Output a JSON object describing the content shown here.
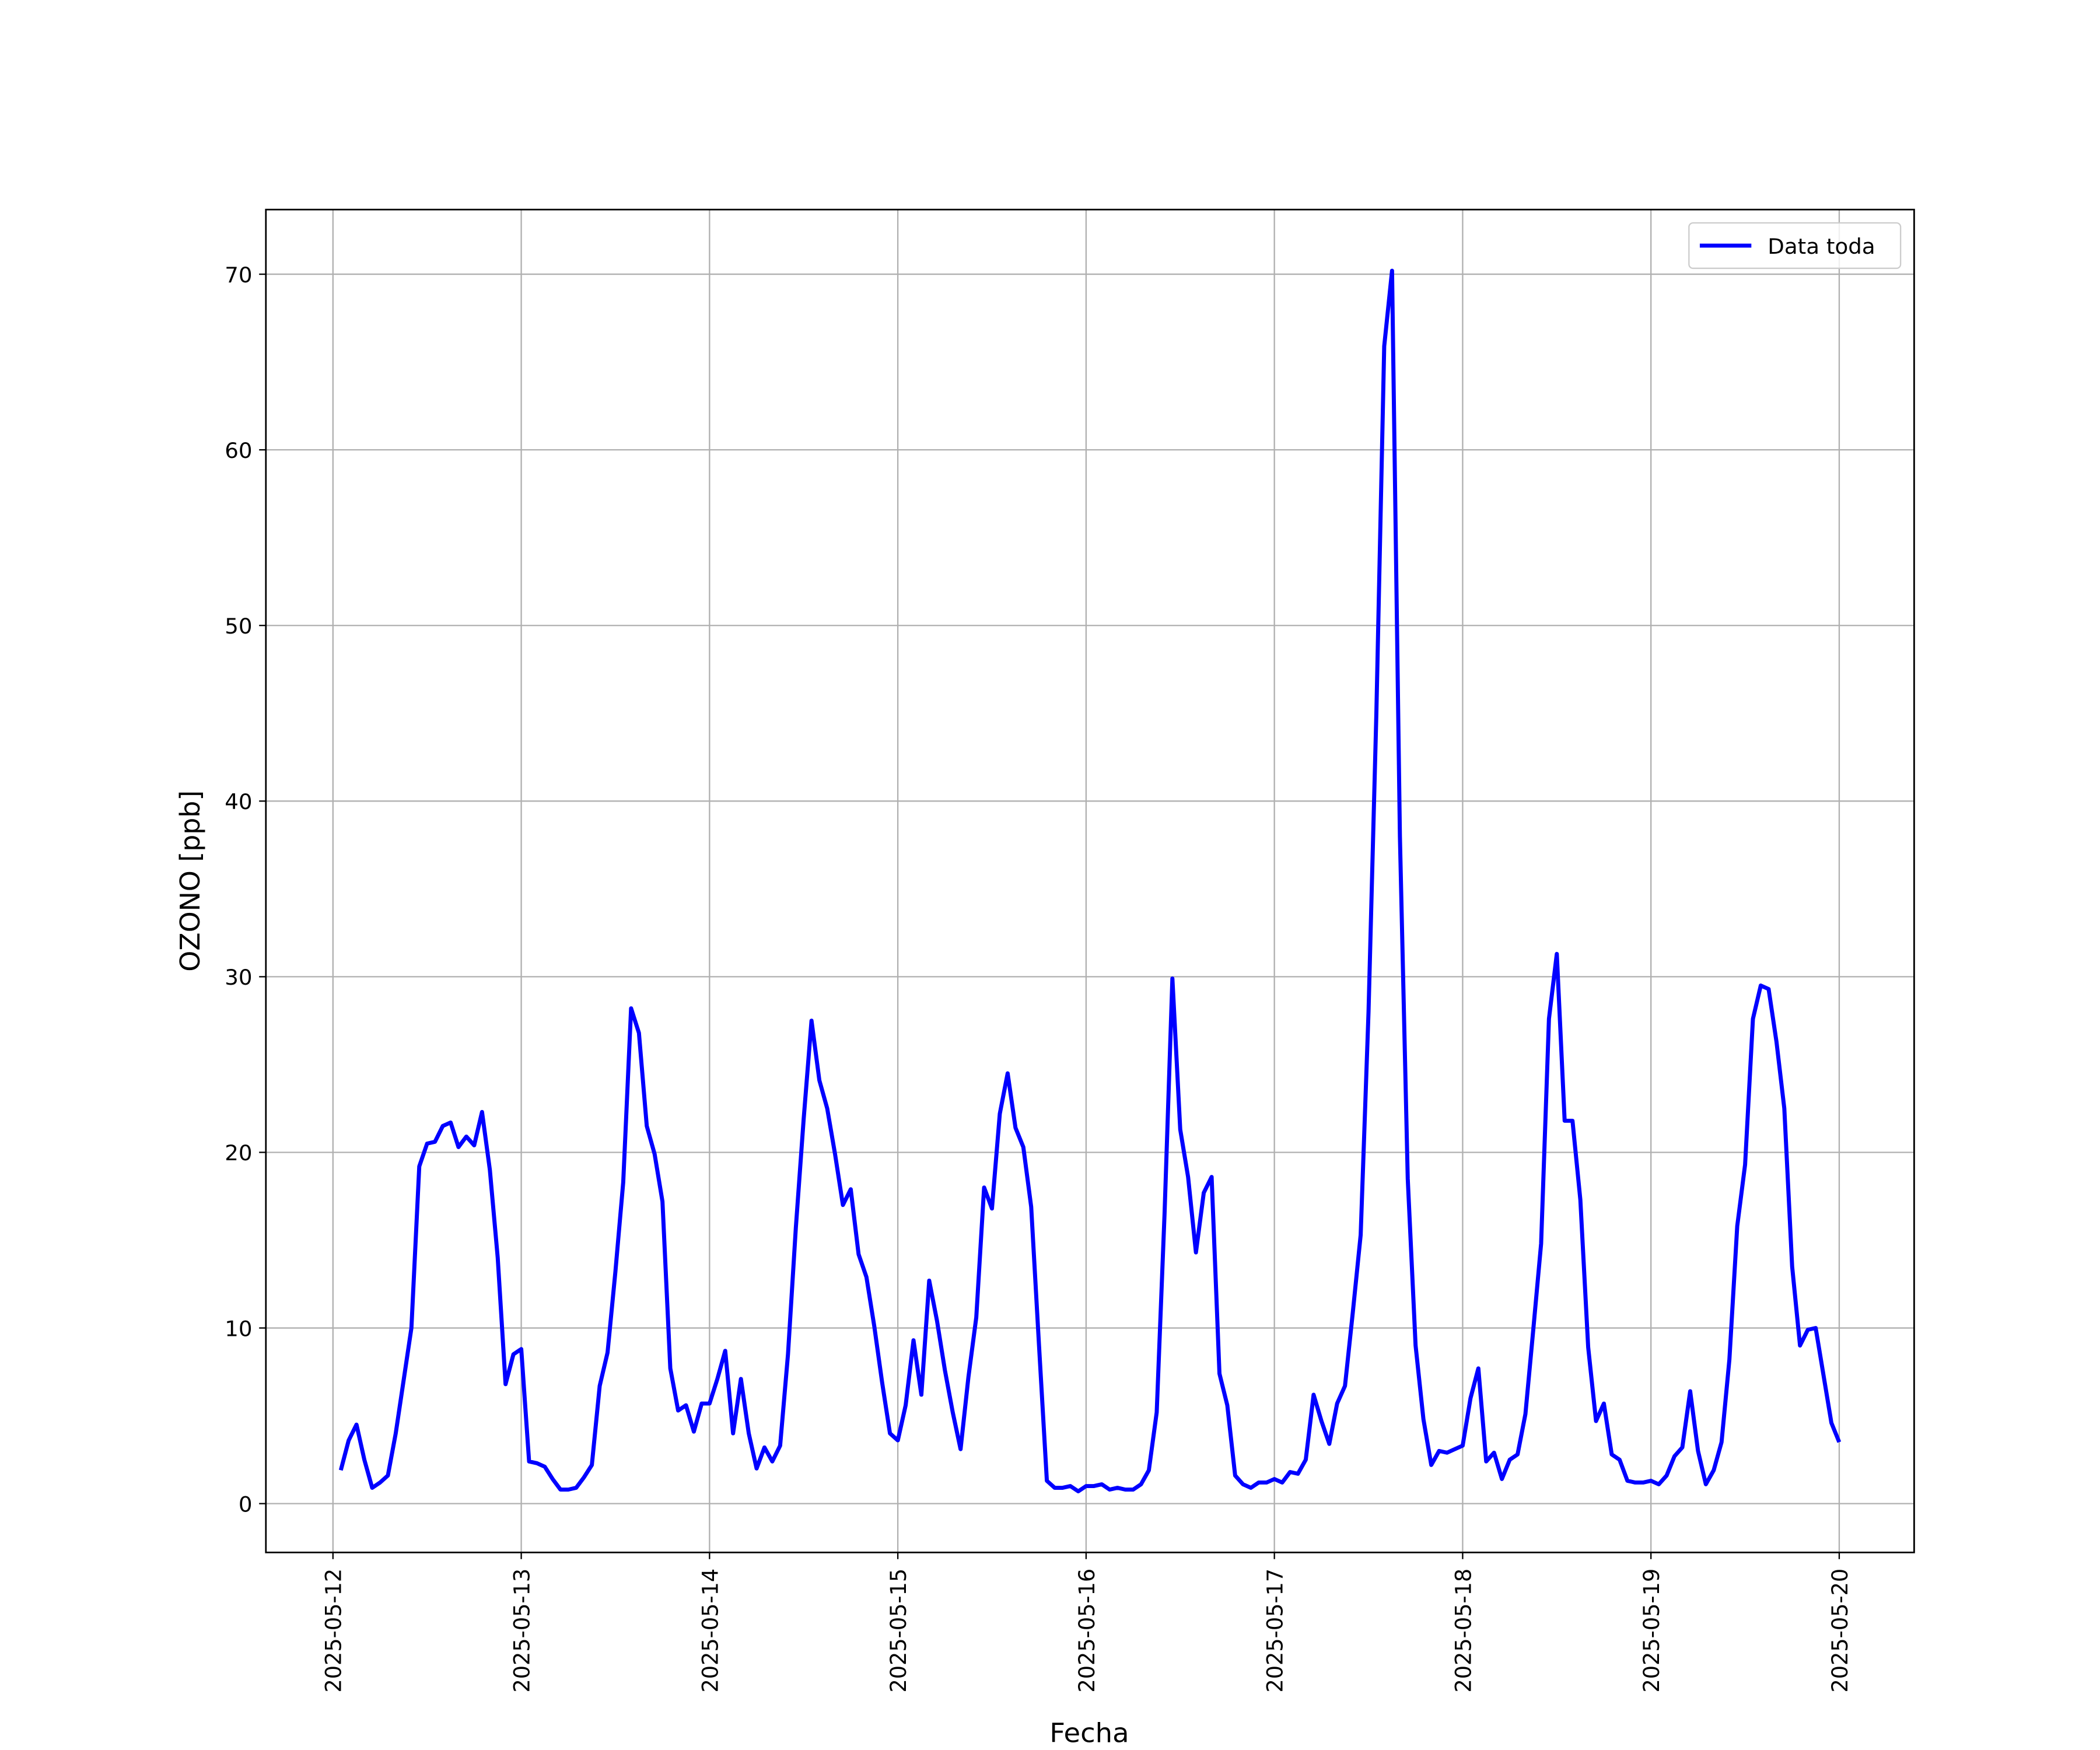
{
  "chart_data": {
    "type": "line",
    "xlabel": "Fecha",
    "ylabel": "OZONO [ppb]",
    "x": [
      "2025-05-12 01:00",
      "2025-05-12 02:00",
      "2025-05-12 03:00",
      "2025-05-12 04:00",
      "2025-05-12 05:00",
      "2025-05-12 06:00",
      "2025-05-12 07:00",
      "2025-05-12 08:00",
      "2025-05-12 09:00",
      "2025-05-12 10:00",
      "2025-05-12 11:00",
      "2025-05-12 12:00",
      "2025-05-12 13:00",
      "2025-05-12 14:00",
      "2025-05-12 15:00",
      "2025-05-12 16:00",
      "2025-05-12 17:00",
      "2025-05-12 18:00",
      "2025-05-12 19:00",
      "2025-05-12 20:00",
      "2025-05-12 21:00",
      "2025-05-12 22:00",
      "2025-05-12 23:00",
      "2025-05-13 00:00",
      "2025-05-13 01:00",
      "2025-05-13 02:00",
      "2025-05-13 03:00",
      "2025-05-13 04:00",
      "2025-05-13 05:00",
      "2025-05-13 06:00",
      "2025-05-13 07:00",
      "2025-05-13 08:00",
      "2025-05-13 09:00",
      "2025-05-13 10:00",
      "2025-05-13 11:00",
      "2025-05-13 12:00",
      "2025-05-13 13:00",
      "2025-05-13 14:00",
      "2025-05-13 15:00",
      "2025-05-13 16:00",
      "2025-05-13 17:00",
      "2025-05-13 18:00",
      "2025-05-13 19:00",
      "2025-05-13 20:00",
      "2025-05-13 21:00",
      "2025-05-13 22:00",
      "2025-05-13 23:00",
      "2025-05-14 00:00",
      "2025-05-14 01:00",
      "2025-05-14 02:00",
      "2025-05-14 03:00",
      "2025-05-14 04:00",
      "2025-05-14 05:00",
      "2025-05-14 06:00",
      "2025-05-14 07:00",
      "2025-05-14 08:00",
      "2025-05-14 09:00",
      "2025-05-14 10:00",
      "2025-05-14 11:00",
      "2025-05-14 12:00",
      "2025-05-14 13:00",
      "2025-05-14 14:00",
      "2025-05-14 15:00",
      "2025-05-14 16:00",
      "2025-05-14 17:00",
      "2025-05-14 18:00",
      "2025-05-14 19:00",
      "2025-05-14 20:00",
      "2025-05-14 21:00",
      "2025-05-14 22:00",
      "2025-05-14 23:00",
      "2025-05-15 00:00",
      "2025-05-15 01:00",
      "2025-05-15 02:00",
      "2025-05-15 03:00",
      "2025-05-15 04:00",
      "2025-05-15 05:00",
      "2025-05-15 06:00",
      "2025-05-15 07:00",
      "2025-05-15 08:00",
      "2025-05-15 09:00",
      "2025-05-15 10:00",
      "2025-05-15 11:00",
      "2025-05-15 12:00",
      "2025-05-15 13:00",
      "2025-05-15 14:00",
      "2025-05-15 15:00",
      "2025-05-15 16:00",
      "2025-05-15 17:00",
      "2025-05-15 18:00",
      "2025-05-15 19:00",
      "2025-05-15 20:00",
      "2025-05-15 21:00",
      "2025-05-15 22:00",
      "2025-05-15 23:00",
      "2025-05-16 00:00",
      "2025-05-16 01:00",
      "2025-05-16 02:00",
      "2025-05-16 03:00",
      "2025-05-16 04:00",
      "2025-05-16 05:00",
      "2025-05-16 06:00",
      "2025-05-16 07:00",
      "2025-05-16 08:00",
      "2025-05-16 09:00",
      "2025-05-16 10:00",
      "2025-05-16 11:00",
      "2025-05-16 12:00",
      "2025-05-16 13:00",
      "2025-05-16 14:00",
      "2025-05-16 15:00",
      "2025-05-16 16:00",
      "2025-05-16 17:00",
      "2025-05-16 18:00",
      "2025-05-16 19:00",
      "2025-05-16 20:00",
      "2025-05-16 21:00",
      "2025-05-16 22:00",
      "2025-05-16 23:00",
      "2025-05-17 00:00",
      "2025-05-17 01:00",
      "2025-05-17 02:00",
      "2025-05-17 03:00",
      "2025-05-17 04:00",
      "2025-05-17 05:00",
      "2025-05-17 06:00",
      "2025-05-17 07:00",
      "2025-05-17 08:00",
      "2025-05-17 09:00",
      "2025-05-17 10:00",
      "2025-05-17 11:00",
      "2025-05-17 12:00",
      "2025-05-17 13:00",
      "2025-05-17 14:00",
      "2025-05-17 15:00",
      "2025-05-17 16:00",
      "2025-05-17 17:00",
      "2025-05-17 18:00",
      "2025-05-17 19:00",
      "2025-05-17 20:00",
      "2025-05-17 21:00",
      "2025-05-17 22:00",
      "2025-05-17 23:00",
      "2025-05-18 00:00",
      "2025-05-18 01:00",
      "2025-05-18 02:00",
      "2025-05-18 03:00",
      "2025-05-18 04:00",
      "2025-05-18 05:00",
      "2025-05-18 06:00",
      "2025-05-18 07:00",
      "2025-05-18 08:00",
      "2025-05-18 09:00",
      "2025-05-18 10:00",
      "2025-05-18 11:00",
      "2025-05-18 12:00",
      "2025-05-18 13:00",
      "2025-05-18 14:00",
      "2025-05-18 15:00",
      "2025-05-18 16:00",
      "2025-05-18 17:00",
      "2025-05-18 18:00",
      "2025-05-18 19:00",
      "2025-05-18 20:00",
      "2025-05-18 21:00",
      "2025-05-18 22:00",
      "2025-05-18 23:00",
      "2025-05-19 00:00",
      "2025-05-19 01:00",
      "2025-05-19 02:00",
      "2025-05-19 03:00",
      "2025-05-19 04:00",
      "2025-05-19 05:00",
      "2025-05-19 06:00",
      "2025-05-19 07:00",
      "2025-05-19 08:00",
      "2025-05-19 09:00",
      "2025-05-19 10:00",
      "2025-05-19 11:00",
      "2025-05-19 12:00",
      "2025-05-19 13:00",
      "2025-05-19 14:00",
      "2025-05-19 15:00",
      "2025-05-19 16:00",
      "2025-05-19 17:00",
      "2025-05-19 18:00",
      "2025-05-19 19:00",
      "2025-05-19 20:00",
      "2025-05-19 21:00",
      "2025-05-19 22:00",
      "2025-05-19 23:00",
      "2025-05-20 00:00"
    ],
    "series": [
      {
        "name": "Data toda",
        "color": "#0000ff",
        "values": [
          1.9,
          3.6,
          4.5,
          2.5,
          0.9,
          1.2,
          1.6,
          4.0,
          7.0,
          10.0,
          19.2,
          20.5,
          20.6,
          21.5,
          21.7,
          20.3,
          20.9,
          20.4,
          22.3,
          19.0,
          14.0,
          6.8,
          8.5,
          8.8,
          2.4,
          2.3,
          2.1,
          1.4,
          0.8,
          0.8,
          0.9,
          1.5,
          2.2,
          6.7,
          8.6,
          13.2,
          18.3,
          28.2,
          26.8,
          21.5,
          19.9,
          17.2,
          7.7,
          5.3,
          5.6,
          4.1,
          5.7,
          5.7,
          7.1,
          8.7,
          4.0,
          7.1,
          4.0,
          2.0,
          3.2,
          2.4,
          3.3,
          8.5,
          15.7,
          21.9,
          27.5,
          24.1,
          22.5,
          19.9,
          17.0,
          17.9,
          14.2,
          12.9,
          10.1,
          6.9,
          4.0,
          3.6,
          5.6,
          9.3,
          6.2,
          12.7,
          10.4,
          7.6,
          5.2,
          3.1,
          7.2,
          10.6,
          18.0,
          16.8,
          22.2,
          24.5,
          21.4,
          20.3,
          16.9,
          9.0,
          1.3,
          0.9,
          0.9,
          1.0,
          0.7,
          1.0,
          1.0,
          1.1,
          0.8,
          0.9,
          0.8,
          0.8,
          1.1,
          1.9,
          5.2,
          16.5,
          29.9,
          21.3,
          18.6,
          14.3,
          17.7,
          18.6,
          7.4,
          5.6,
          1.6,
          1.1,
          0.9,
          1.2,
          1.2,
          1.4,
          1.2,
          1.8,
          1.7,
          2.5,
          6.2,
          4.7,
          3.4,
          5.7,
          6.7,
          10.9,
          15.3,
          28.0,
          45.0,
          65.9,
          70.2,
          38.0,
          18.5,
          9.0,
          4.8,
          2.2,
          3.0,
          2.9,
          3.1,
          3.3,
          6.0,
          7.7,
          2.4,
          2.9,
          1.4,
          2.5,
          2.8,
          5.1,
          9.9,
          14.8,
          27.6,
          31.3,
          21.8,
          21.8,
          17.3,
          8.9,
          4.7,
          5.7,
          2.8,
          2.5,
          1.3,
          1.2,
          1.2,
          1.3,
          1.1,
          1.6,
          2.7,
          3.2,
          6.4,
          3.0,
          1.1,
          1.9,
          3.5,
          8.2,
          15.8,
          19.3,
          27.6,
          29.5,
          29.3,
          26.3,
          22.5,
          13.5,
          9.0,
          9.9,
          10.0,
          7.3,
          4.6,
          3.5
        ]
      }
    ],
    "xlim": [
      "2025-05-11 15:27",
      "2025-05-20 09:33"
    ],
    "xticks": [
      "2025-05-12",
      "2025-05-13",
      "2025-05-14",
      "2025-05-15",
      "2025-05-16",
      "2025-05-17",
      "2025-05-18",
      "2025-05-19",
      "2025-05-20"
    ],
    "ylim": [
      -2.78,
      73.68
    ],
    "yticks": [
      0,
      10,
      20,
      30,
      40,
      50,
      60,
      70
    ],
    "grid": true,
    "legend": "upper right"
  }
}
